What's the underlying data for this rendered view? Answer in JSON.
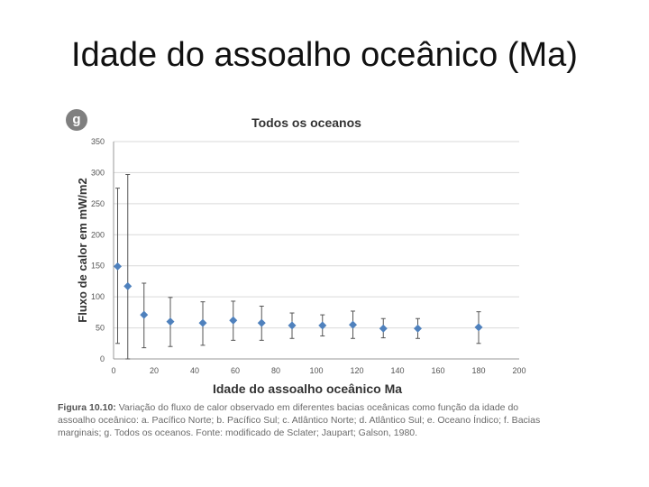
{
  "title": "Idade do assoalho oceânico (Ma)",
  "badge": "g",
  "caption": {
    "figure_label": "Figura 10.10:",
    "text": "Variação do fluxo de calor observado em diferentes bacias oceânicas como função da idade do assoalho oceânico: a. Pacífico Norte; b. Pacífico Sul; c. Atlântico Norte; d. Atlântico Sul; e. Oceano Índico; f. Bacias marginais; g. Todos os oceanos.  Fonte: modificado de Sclater; Jaupart; Galson, 1980."
  },
  "chart_data": {
    "type": "scatter",
    "title": "Todos os oceanos",
    "xlabel": "Idade do assoalho oceânico Ma",
    "ylabel": "Fluxo de calor em mW/m2",
    "xlim": [
      0,
      200
    ],
    "ylim": [
      0,
      350
    ],
    "xticks": [
      0,
      20,
      40,
      60,
      80,
      100,
      120,
      140,
      160,
      180,
      200
    ],
    "yticks": [
      0,
      50,
      100,
      150,
      200,
      250,
      300,
      350
    ],
    "grid": true,
    "marker_color": "#4f81bd",
    "points": [
      {
        "x": 2,
        "y": 149,
        "low": 25,
        "high": 275
      },
      {
        "x": 7,
        "y": 117,
        "low": 0,
        "high": 297
      },
      {
        "x": 15,
        "y": 71,
        "low": 18,
        "high": 122
      },
      {
        "x": 28,
        "y": 60,
        "low": 20,
        "high": 99
      },
      {
        "x": 44,
        "y": 58,
        "low": 22,
        "high": 92
      },
      {
        "x": 59,
        "y": 62,
        "low": 30,
        "high": 93
      },
      {
        "x": 73,
        "y": 58,
        "low": 30,
        "high": 85
      },
      {
        "x": 88,
        "y": 54,
        "low": 33,
        "high": 74
      },
      {
        "x": 103,
        "y": 54,
        "low": 37,
        "high": 71
      },
      {
        "x": 118,
        "y": 55,
        "low": 33,
        "high": 77
      },
      {
        "x": 133,
        "y": 49,
        "low": 34,
        "high": 65
      },
      {
        "x": 150,
        "y": 49,
        "low": 33,
        "high": 65
      },
      {
        "x": 180,
        "y": 51,
        "low": 25,
        "high": 76
      }
    ]
  }
}
